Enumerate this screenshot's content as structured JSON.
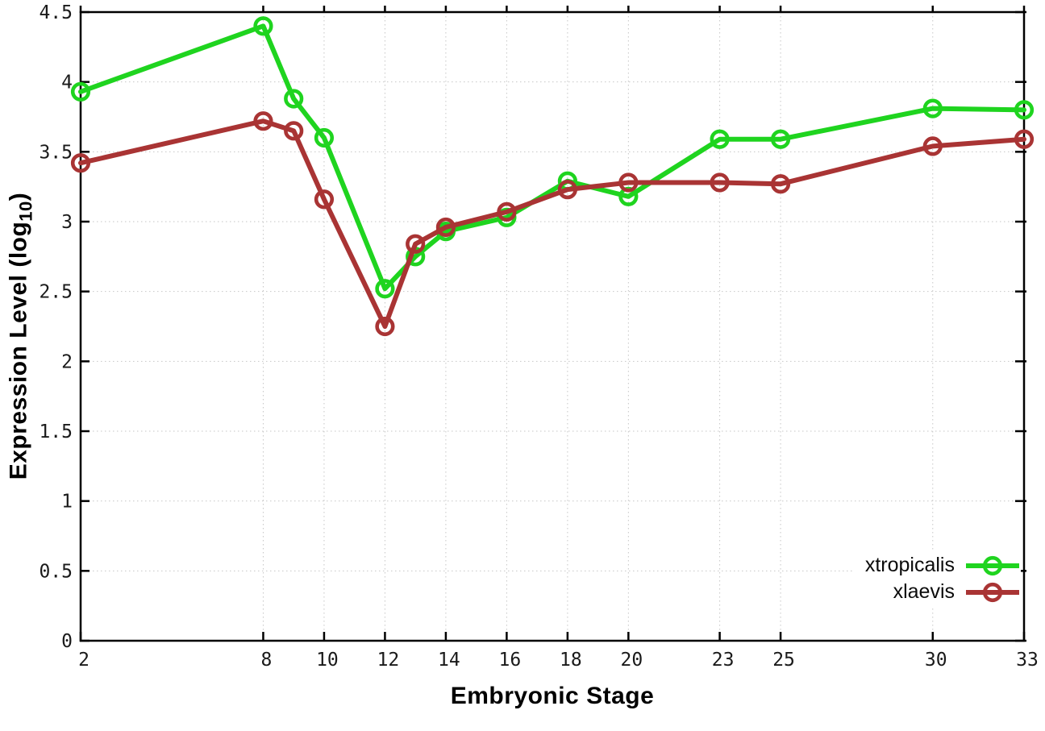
{
  "chart_data": {
    "type": "line",
    "title": "",
    "xlabel": "Embryonic Stage",
    "ylabel_main": "Expression Level (log",
    "ylabel_sub": "10",
    "ylabel_close": ")",
    "xlim": [
      2,
      33
    ],
    "ylim": [
      0,
      4.5
    ],
    "grid": true,
    "legend_position": "inside-bottom-right",
    "x": [
      2,
      8,
      9,
      10,
      12,
      13,
      14,
      16,
      18,
      20,
      23,
      25,
      30,
      33
    ],
    "xtick_values": [
      2,
      8,
      10,
      12,
      14,
      16,
      18,
      20,
      23,
      25,
      30,
      33
    ],
    "xtick_labels": [
      "2",
      "8",
      "10",
      "12",
      "14",
      "16",
      "18",
      "20",
      "23",
      "25",
      "30",
      "33"
    ],
    "ytick_values": [
      0,
      0.5,
      1,
      1.5,
      2,
      2.5,
      3,
      3.5,
      4,
      4.5
    ],
    "ytick_labels": [
      "0",
      "0.5",
      "1",
      "1.5",
      "2",
      "2.5",
      "3",
      "3.5",
      "4",
      "4.5"
    ],
    "series": [
      {
        "name": "xtropicalis",
        "color": "#1fd41f",
        "values": [
          3.93,
          4.4,
          3.88,
          3.6,
          2.52,
          2.75,
          2.93,
          3.03,
          3.29,
          3.18,
          3.59,
          3.59,
          3.81,
          3.8
        ]
      },
      {
        "name": "xlaevis",
        "color": "#a93434",
        "values": [
          3.42,
          3.72,
          3.65,
          3.16,
          2.25,
          2.84,
          2.96,
          3.07,
          3.23,
          3.28,
          3.28,
          3.27,
          3.54,
          3.59
        ]
      }
    ],
    "colors": {
      "grid": "#c6c6c6",
      "axis": "#000000",
      "tick_text": "#1a1a1a",
      "background": "#ffffff"
    }
  }
}
